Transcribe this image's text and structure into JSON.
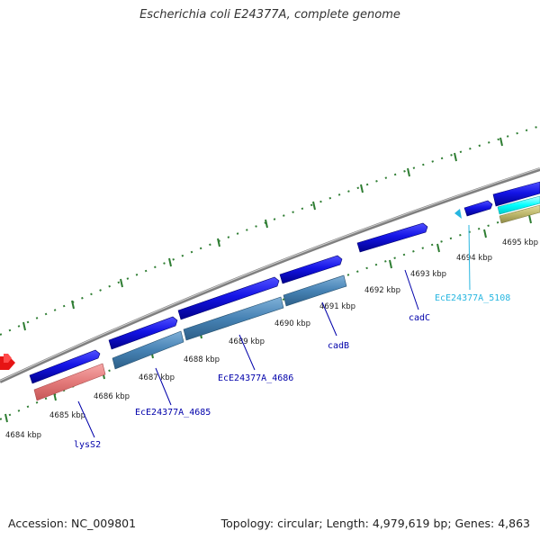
{
  "title": "Escherichia coli E24377A, complete genome",
  "footer": {
    "accession": "Accession: NC_009801",
    "summary": "Topology: circular; Length: 4,979,619 bp; Genes: 4,863"
  },
  "colors": {
    "background": "#ffffff",
    "backbone": "#8a8a8a",
    "cds": "#1414e6",
    "gene_blue": "#4682b4",
    "gene_pink": "#e37a7a",
    "gene_cyan": "#00ffff",
    "gene_khaki": "#bdb76b",
    "trna": "#e61414",
    "light_blue_label": "#27b6e0",
    "tick_green": "#2e7d32"
  },
  "ticks": {
    "labels": [
      "4684 kbp",
      "4685 kbp",
      "4686 kbp",
      "4687 kbp",
      "4688 kbp",
      "4689 kbp",
      "4690 kbp",
      "4691 kbp",
      "4692 kbp",
      "4693 kbp",
      "4694 kbp",
      "4695 kbp"
    ]
  },
  "genes": {
    "labels": [
      {
        "text": "lysS2",
        "color": "#0000aa"
      },
      {
        "text": "EcE24377A_4685",
        "color": "#0000aa"
      },
      {
        "text": "EcE24377A_4686",
        "color": "#0000aa"
      },
      {
        "text": "cadB",
        "color": "#0000aa"
      },
      {
        "text": "cadC",
        "color": "#0000aa"
      },
      {
        "text": "EcE24377A_5108",
        "color": "#27b6e0"
      }
    ]
  }
}
